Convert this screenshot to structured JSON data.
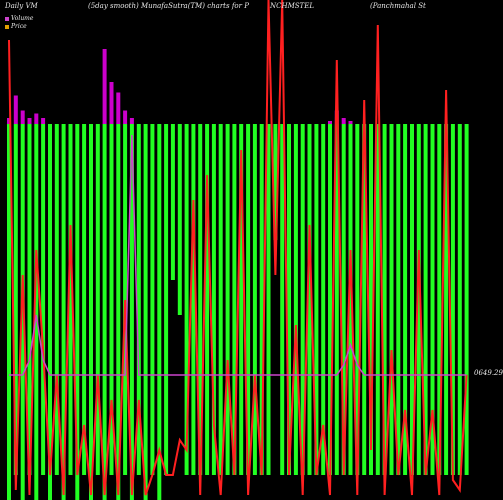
{
  "header": {
    "daily_label": "Daily",
    "vm_label": "VM",
    "smooth_label": "(5day smooth) MunafaSutra(TM) charts for P",
    "symbol": "NCHMSTEL",
    "company": "(Panchmahal St"
  },
  "legend": [
    {
      "label": "Volume",
      "color": "#cc44cc"
    },
    {
      "label": "Price",
      "color": "#e0a000"
    }
  ],
  "value_label": "0649.29",
  "colors": {
    "background": "#000000",
    "bar": "#22ff22",
    "price_line": "#ff2020",
    "volume_line": "#cc44cc",
    "volume_bar": "#cc00cc"
  },
  "chart_data": {
    "type": "bar",
    "description_series": [
      "volume bars",
      "price line",
      "smoothed volume line"
    ],
    "bars": [
      {
        "top": 0.25,
        "bottom": 1.0
      },
      {
        "top": 0.25,
        "bottom": 0.95
      },
      {
        "top": 0.25,
        "bottom": 1.0
      },
      {
        "top": 0.25,
        "bottom": 0.95
      },
      {
        "top": 0.25,
        "bottom": 1.0
      },
      {
        "top": 0.25,
        "bottom": 0.95
      },
      {
        "top": 0.25,
        "bottom": 1.0
      },
      {
        "top": 0.25,
        "bottom": 0.95
      },
      {
        "top": 0.25,
        "bottom": 1.0
      },
      {
        "top": 0.25,
        "bottom": 0.95
      },
      {
        "top": 0.25,
        "bottom": 1.0
      },
      {
        "top": 0.25,
        "bottom": 0.95
      },
      {
        "top": 0.25,
        "bottom": 1.0
      },
      {
        "top": 0.25,
        "bottom": 0.95
      },
      {
        "top": 0.25,
        "bottom": 1.0
      },
      {
        "top": 0.25,
        "bottom": 0.95
      },
      {
        "top": 0.25,
        "bottom": 1.0
      },
      {
        "top": 0.25,
        "bottom": 0.95
      },
      {
        "top": 0.25,
        "bottom": 1.0
      },
      {
        "top": 0.25,
        "bottom": 0.95
      },
      {
        "top": 0.25,
        "bottom": 1.0
      },
      {
        "top": 0.25,
        "bottom": 0.95
      },
      {
        "top": 0.25,
        "bottom": 1.0
      },
      {
        "top": 0.25,
        "bottom": 0.95
      },
      {
        "top": 0.25,
        "bottom": 0.56
      },
      {
        "top": 0.25,
        "bottom": 0.63
      },
      {
        "top": 0.25,
        "bottom": 0.95
      },
      {
        "top": 0.25,
        "bottom": 0.95
      },
      {
        "top": 0.25,
        "bottom": 0.95
      },
      {
        "top": 0.25,
        "bottom": 0.95
      },
      {
        "top": 0.25,
        "bottom": 0.95
      },
      {
        "top": 0.25,
        "bottom": 0.95
      },
      {
        "top": 0.25,
        "bottom": 0.95
      },
      {
        "top": 0.25,
        "bottom": 0.95
      },
      {
        "top": 0.25,
        "bottom": 0.95
      },
      {
        "top": 0.25,
        "bottom": 0.95
      },
      {
        "top": 0.25,
        "bottom": 0.95
      },
      {
        "top": 0.25,
        "bottom": 0.95
      },
      {
        "top": 0.25,
        "bottom": 0.95
      },
      {
        "top": 0.25,
        "bottom": 0.48
      },
      {
        "top": 0.25,
        "bottom": 0.95
      },
      {
        "top": 0.25,
        "bottom": 0.95
      },
      {
        "top": 0.25,
        "bottom": 0.95
      },
      {
        "top": 0.25,
        "bottom": 0.95
      },
      {
        "top": 0.25,
        "bottom": 0.95
      },
      {
        "top": 0.25,
        "bottom": 0.95
      },
      {
        "top": 0.25,
        "bottom": 0.95
      },
      {
        "top": 0.25,
        "bottom": 0.95
      },
      {
        "top": 0.25,
        "bottom": 0.95
      },
      {
        "top": 0.25,
        "bottom": 0.95
      },
      {
        "top": 0.25,
        "bottom": 0.95
      },
      {
        "top": 0.25,
        "bottom": 0.95
      },
      {
        "top": 0.25,
        "bottom": 0.95
      },
      {
        "top": 0.25,
        "bottom": 0.95
      },
      {
        "top": 0.25,
        "bottom": 0.95
      },
      {
        "top": 0.25,
        "bottom": 0.95
      },
      {
        "top": 0.25,
        "bottom": 0.95
      },
      {
        "top": 0.25,
        "bottom": 0.95
      },
      {
        "top": 0.25,
        "bottom": 0.95
      },
      {
        "top": 0.25,
        "bottom": 0.95
      },
      {
        "top": 0.25,
        "bottom": 0.95
      },
      {
        "top": 0.25,
        "bottom": 0.95
      },
      {
        "top": 0.25,
        "bottom": 0.95
      },
      {
        "top": 0.25,
        "bottom": 0.95
      },
      {
        "top": 0.25,
        "bottom": 0.95
      },
      {
        "top": 0.25,
        "bottom": 0.95
      },
      {
        "top": 0.25,
        "bottom": 0.95
      },
      {
        "top": 0.25,
        "bottom": 0.95
      }
    ],
    "volume_spikes": [
      {
        "index": 0,
        "value": 0.04
      },
      {
        "index": 1,
        "value": 0.19
      },
      {
        "index": 2,
        "value": 0.09
      },
      {
        "index": 3,
        "value": 0.04
      },
      {
        "index": 4,
        "value": 0.07
      },
      {
        "index": 5,
        "value": 0.04
      },
      {
        "index": 14,
        "value": 0.5
      },
      {
        "index": 15,
        "value": 0.28
      },
      {
        "index": 16,
        "value": 0.21
      },
      {
        "index": 17,
        "value": 0.09
      },
      {
        "index": 18,
        "value": 0.04
      },
      {
        "index": 47,
        "value": 0.02
      },
      {
        "index": 48,
        "value": 0.09
      },
      {
        "index": 49,
        "value": 0.04
      },
      {
        "index": 50,
        "value": 0.02
      }
    ],
    "price": [
      0.08,
      0.98,
      0.55,
      0.99,
      0.5,
      0.7,
      0.95,
      0.75,
      0.99,
      0.45,
      0.95,
      0.85,
      0.99,
      0.75,
      0.99,
      0.8,
      0.99,
      0.6,
      0.99,
      0.8,
      0.99,
      0.95,
      0.9,
      0.95,
      0.95,
      0.88,
      0.9,
      0.4,
      0.99,
      0.35,
      0.85,
      0.99,
      0.72,
      0.95,
      0.3,
      0.99,
      0.75,
      0.95,
      0.0,
      0.55,
      0.0,
      0.95,
      0.65,
      0.99,
      0.45,
      0.95,
      0.85,
      0.99,
      0.12,
      0.95,
      0.5,
      0.99,
      0.2,
      0.9,
      0.05,
      0.99,
      0.7,
      0.95,
      0.82,
      0.99,
      0.5,
      0.95,
      0.82,
      0.99,
      0.18,
      0.96,
      0.98,
      0.75
    ],
    "volume_smooth": [
      0.75,
      0.75,
      0.75,
      0.72,
      0.63,
      0.72,
      0.75,
      0.75,
      0.75,
      0.75,
      0.75,
      0.75,
      0.75,
      0.75,
      0.75,
      0.75,
      0.75,
      0.75,
      0.27,
      0.75,
      0.75,
      0.75,
      0.75,
      0.75,
      0.75,
      0.75,
      0.75,
      0.75,
      0.75,
      0.75,
      0.75,
      0.75,
      0.75,
      0.75,
      0.75,
      0.75,
      0.75,
      0.75,
      0.75,
      0.75,
      0.75,
      0.75,
      0.75,
      0.75,
      0.75,
      0.75,
      0.75,
      0.75,
      0.75,
      0.73,
      0.69,
      0.73,
      0.75,
      0.75,
      0.75,
      0.75,
      0.75,
      0.75,
      0.75,
      0.75,
      0.75,
      0.75,
      0.75,
      0.75,
      0.75,
      0.75,
      0.75,
      0.75
    ]
  }
}
